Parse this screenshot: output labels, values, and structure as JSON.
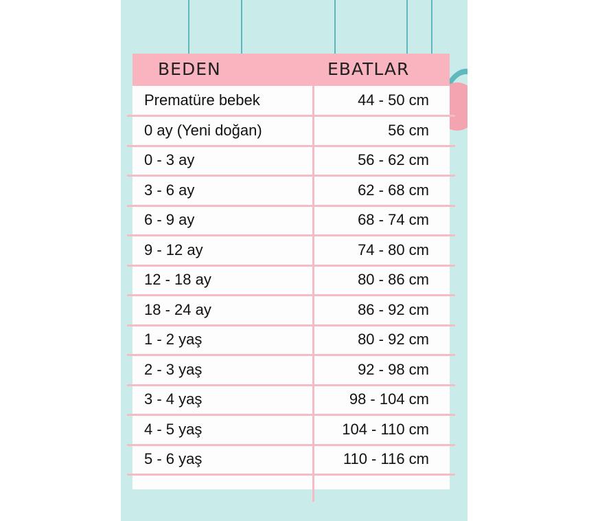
{
  "header": {
    "size_label": "BEDEN",
    "measure_label": "EBATLAR"
  },
  "colors": {
    "background": "#c9eceb",
    "header": "#f9b4c0",
    "lines": "#f6bcc6",
    "strings": "#5fb8bd"
  },
  "rows": [
    {
      "size": "Prematüre bebek",
      "measure": "44 - 50 cm"
    },
    {
      "size": "0 ay (Yeni doğan)",
      "measure": "56 cm"
    },
    {
      "size": "0 - 3 ay",
      "measure": "56 - 62 cm"
    },
    {
      "size": "3 - 6 ay",
      "measure": "62 - 68 cm"
    },
    {
      "size": "6 - 9 ay",
      "measure": "68 - 74 cm"
    },
    {
      "size": "9 - 12 ay",
      "measure": "74 - 80 cm"
    },
    {
      "size": "12 - 18 ay",
      "measure": "80 - 86 cm"
    },
    {
      "size": "18 - 24 ay",
      "measure": "86 - 92 cm"
    },
    {
      "size": "1 - 2 yaş",
      "measure": "80 - 92 cm"
    },
    {
      "size": "2 - 3 yaş",
      "measure": "92 - 98 cm"
    },
    {
      "size": "3 - 4 yaş",
      "measure": "98 - 104 cm"
    },
    {
      "size": "4 - 5 yaş",
      "measure": "104 - 110 cm"
    },
    {
      "size": "5 - 6 yaş",
      "measure": "110 - 116 cm"
    }
  ]
}
